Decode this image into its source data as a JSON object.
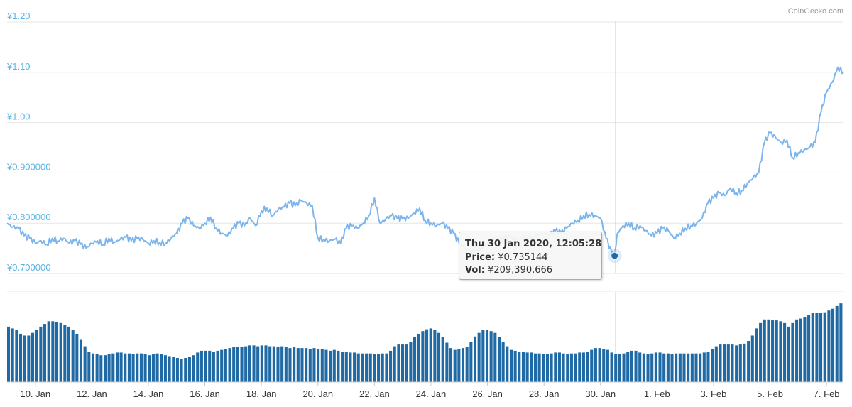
{
  "credit": "CoinGecko.com",
  "tooltip": {
    "date": "Thu 30 Jan 2020, 12:05:28",
    "price_label": "Price:",
    "price_value": "¥0.735144",
    "vol_label": "Vol:",
    "vol_value": "¥209,390,666"
  },
  "colors": {
    "price_line": "#7cb5ec",
    "volume_bar": "#1f6aa5",
    "axis_label": "#59b5e5",
    "marker": "#1f6aa5"
  },
  "chart_data": {
    "type": "line",
    "title": "",
    "xlabel": "",
    "ylabel": "",
    "ylim": [
      0.7,
      1.2
    ],
    "y_ticks": [
      {
        "value": 1.2,
        "label": "¥1.20"
      },
      {
        "value": 1.1,
        "label": "¥1.10"
      },
      {
        "value": 1.0,
        "label": "¥1.00"
      },
      {
        "value": 0.9,
        "label": "¥0.900000"
      },
      {
        "value": 0.8,
        "label": "¥0.800000"
      },
      {
        "value": 0.7,
        "label": "¥0.700000"
      }
    ],
    "x_ticks": [
      {
        "day": 10,
        "label": "10. Jan"
      },
      {
        "day": 12,
        "label": "12. Jan"
      },
      {
        "day": 14,
        "label": "14. Jan"
      },
      {
        "day": 16,
        "label": "16. Jan"
      },
      {
        "day": 18,
        "label": "18. Jan"
      },
      {
        "day": 20,
        "label": "20. Jan"
      },
      {
        "day": 22,
        "label": "22. Jan"
      },
      {
        "day": 24,
        "label": "24. Jan"
      },
      {
        "day": 26,
        "label": "26. Jan"
      },
      {
        "day": 28,
        "label": "28. Jan"
      },
      {
        "day": 30,
        "label": "30. Jan"
      },
      {
        "day": 32,
        "label": "1. Feb"
      },
      {
        "day": 34,
        "label": "3. Feb"
      },
      {
        "day": 36,
        "label": "5. Feb"
      },
      {
        "day": 38,
        "label": "7. Feb"
      }
    ],
    "x_range": [
      9.0,
      38.6
    ],
    "hover_day": 30.5,
    "hover_price": 0.735144,
    "series": [
      {
        "values": [
          [
            9.0,
            0.8
          ],
          [
            9.2,
            0.792
          ],
          [
            9.4,
            0.79
          ],
          [
            9.6,
            0.775
          ],
          [
            9.8,
            0.77
          ],
          [
            10.0,
            0.76
          ],
          [
            10.2,
            0.765
          ],
          [
            10.4,
            0.758
          ],
          [
            10.6,
            0.77
          ],
          [
            10.8,
            0.765
          ],
          [
            11.0,
            0.77
          ],
          [
            11.2,
            0.76
          ],
          [
            11.4,
            0.765
          ],
          [
            11.6,
            0.758
          ],
          [
            11.8,
            0.75
          ],
          [
            12.0,
            0.76
          ],
          [
            12.2,
            0.765
          ],
          [
            12.4,
            0.758
          ],
          [
            12.6,
            0.77
          ],
          [
            12.8,
            0.762
          ],
          [
            13.0,
            0.768
          ],
          [
            13.2,
            0.772
          ],
          [
            13.4,
            0.765
          ],
          [
            13.6,
            0.77
          ],
          [
            13.8,
            0.768
          ],
          [
            14.0,
            0.76
          ],
          [
            14.2,
            0.765
          ],
          [
            14.4,
            0.762
          ],
          [
            14.6,
            0.76
          ],
          [
            14.8,
            0.77
          ],
          [
            15.0,
            0.78
          ],
          [
            15.2,
            0.8
          ],
          [
            15.4,
            0.81
          ],
          [
            15.6,
            0.795
          ],
          [
            15.8,
            0.79
          ],
          [
            16.0,
            0.8
          ],
          [
            16.2,
            0.812
          ],
          [
            16.4,
            0.79
          ],
          [
            16.6,
            0.78
          ],
          [
            16.8,
            0.775
          ],
          [
            17.0,
            0.79
          ],
          [
            17.2,
            0.8
          ],
          [
            17.4,
            0.795
          ],
          [
            17.6,
            0.81
          ],
          [
            17.8,
            0.795
          ],
          [
            18.0,
            0.825
          ],
          [
            18.2,
            0.83
          ],
          [
            18.4,
            0.815
          ],
          [
            18.6,
            0.828
          ],
          [
            18.8,
            0.832
          ],
          [
            19.0,
            0.84
          ],
          [
            19.2,
            0.835
          ],
          [
            19.4,
            0.845
          ],
          [
            19.6,
            0.84
          ],
          [
            19.8,
            0.835
          ],
          [
            20.0,
            0.77
          ],
          [
            20.2,
            0.768
          ],
          [
            20.4,
            0.765
          ],
          [
            20.6,
            0.768
          ],
          [
            20.8,
            0.76
          ],
          [
            21.0,
            0.79
          ],
          [
            21.2,
            0.795
          ],
          [
            21.4,
            0.79
          ],
          [
            21.6,
            0.8
          ],
          [
            21.8,
            0.815
          ],
          [
            22.0,
            0.85
          ],
          [
            22.2,
            0.8
          ],
          [
            22.4,
            0.808
          ],
          [
            22.6,
            0.815
          ],
          [
            22.8,
            0.81
          ],
          [
            23.0,
            0.808
          ],
          [
            23.2,
            0.81
          ],
          [
            23.4,
            0.82
          ],
          [
            23.6,
            0.83
          ],
          [
            23.8,
            0.805
          ],
          [
            24.0,
            0.8
          ],
          [
            24.2,
            0.795
          ],
          [
            24.4,
            0.8
          ],
          [
            24.6,
            0.79
          ],
          [
            24.8,
            0.78
          ],
          [
            25.0,
            0.76
          ],
          [
            25.2,
            0.75
          ],
          [
            25.4,
            0.745
          ],
          [
            25.6,
            0.748
          ],
          [
            25.8,
            0.752
          ],
          [
            26.0,
            0.76
          ],
          [
            26.2,
            0.77
          ],
          [
            26.4,
            0.765
          ],
          [
            26.6,
            0.77
          ],
          [
            26.8,
            0.772
          ],
          [
            27.0,
            0.768
          ],
          [
            27.2,
            0.77
          ],
          [
            27.4,
            0.772
          ],
          [
            27.6,
            0.775
          ],
          [
            27.8,
            0.778
          ],
          [
            28.0,
            0.78
          ],
          [
            28.2,
            0.776
          ],
          [
            28.4,
            0.785
          ],
          [
            28.6,
            0.78
          ],
          [
            28.8,
            0.79
          ],
          [
            29.0,
            0.8
          ],
          [
            29.2,
            0.805
          ],
          [
            29.4,
            0.815
          ],
          [
            29.6,
            0.818
          ],
          [
            29.8,
            0.815
          ],
          [
            30.0,
            0.81
          ],
          [
            30.2,
            0.77
          ],
          [
            30.4,
            0.74
          ],
          [
            30.5,
            0.735144
          ],
          [
            30.6,
            0.78
          ],
          [
            30.8,
            0.795
          ],
          [
            31.0,
            0.8
          ],
          [
            31.2,
            0.79
          ],
          [
            31.4,
            0.795
          ],
          [
            31.6,
            0.785
          ],
          [
            31.8,
            0.775
          ],
          [
            32.0,
            0.78
          ],
          [
            32.2,
            0.79
          ],
          [
            32.4,
            0.785
          ],
          [
            32.6,
            0.77
          ],
          [
            32.8,
            0.78
          ],
          [
            33.0,
            0.79
          ],
          [
            33.2,
            0.795
          ],
          [
            33.4,
            0.8
          ],
          [
            33.6,
            0.81
          ],
          [
            33.8,
            0.84
          ],
          [
            34.0,
            0.85
          ],
          [
            34.2,
            0.86
          ],
          [
            34.4,
            0.855
          ],
          [
            34.6,
            0.87
          ],
          [
            34.8,
            0.86
          ],
          [
            35.0,
            0.865
          ],
          [
            35.2,
            0.88
          ],
          [
            35.4,
            0.89
          ],
          [
            35.6,
            0.9
          ],
          [
            35.8,
            0.96
          ],
          [
            36.0,
            0.98
          ],
          [
            36.2,
            0.97
          ],
          [
            36.4,
            0.96
          ],
          [
            36.6,
            0.965
          ],
          [
            36.8,
            0.93
          ],
          [
            37.0,
            0.94
          ],
          [
            37.2,
            0.945
          ],
          [
            37.4,
            0.95
          ],
          [
            37.6,
            0.96
          ],
          [
            37.8,
            1.02
          ],
          [
            38.0,
            1.06
          ],
          [
            38.2,
            1.08
          ],
          [
            38.4,
            1.11
          ],
          [
            38.6,
            1.1
          ]
        ]
      }
    ],
    "volume": {
      "values": [
        0.62,
        0.6,
        0.58,
        0.54,
        0.52,
        0.52,
        0.55,
        0.58,
        0.62,
        0.65,
        0.68,
        0.68,
        0.67,
        0.66,
        0.64,
        0.62,
        0.58,
        0.54,
        0.48,
        0.4,
        0.34,
        0.32,
        0.31,
        0.3,
        0.3,
        0.31,
        0.32,
        0.33,
        0.33,
        0.32,
        0.32,
        0.31,
        0.32,
        0.32,
        0.31,
        0.3,
        0.31,
        0.32,
        0.31,
        0.3,
        0.29,
        0.28,
        0.27,
        0.26,
        0.27,
        0.28,
        0.3,
        0.33,
        0.35,
        0.35,
        0.35,
        0.34,
        0.35,
        0.36,
        0.37,
        0.38,
        0.39,
        0.39,
        0.39,
        0.4,
        0.41,
        0.41,
        0.4,
        0.41,
        0.41,
        0.4,
        0.4,
        0.39,
        0.4,
        0.39,
        0.38,
        0.39,
        0.38,
        0.38,
        0.38,
        0.37,
        0.38,
        0.37,
        0.37,
        0.36,
        0.35,
        0.36,
        0.35,
        0.34,
        0.34,
        0.33,
        0.33,
        0.32,
        0.32,
        0.32,
        0.32,
        0.31,
        0.31,
        0.32,
        0.32,
        0.35,
        0.4,
        0.42,
        0.42,
        0.42,
        0.45,
        0.5,
        0.54,
        0.57,
        0.59,
        0.6,
        0.58,
        0.55,
        0.5,
        0.44,
        0.38,
        0.36,
        0.37,
        0.38,
        0.39,
        0.45,
        0.51,
        0.55,
        0.58,
        0.58,
        0.57,
        0.55,
        0.5,
        0.45,
        0.4,
        0.36,
        0.35,
        0.34,
        0.34,
        0.33,
        0.33,
        0.32,
        0.32,
        0.31,
        0.31,
        0.32,
        0.33,
        0.33,
        0.32,
        0.31,
        0.32,
        0.32,
        0.33,
        0.33,
        0.34,
        0.36,
        0.38,
        0.38,
        0.37,
        0.36,
        0.33,
        0.31,
        0.31,
        0.32,
        0.34,
        0.35,
        0.35,
        0.33,
        0.32,
        0.31,
        0.32,
        0.33,
        0.33,
        0.32,
        0.32,
        0.31,
        0.32,
        0.32,
        0.32,
        0.32,
        0.32,
        0.32,
        0.32,
        0.33,
        0.34,
        0.37,
        0.4,
        0.42,
        0.42,
        0.42,
        0.42,
        0.41,
        0.42,
        0.43,
        0.46,
        0.52,
        0.6,
        0.66,
        0.7,
        0.7,
        0.69,
        0.69,
        0.68,
        0.66,
        0.62,
        0.66,
        0.7,
        0.71,
        0.73,
        0.75,
        0.77,
        0.77,
        0.77,
        0.78,
        0.8,
        0.82,
        0.85,
        0.88
      ]
    }
  }
}
